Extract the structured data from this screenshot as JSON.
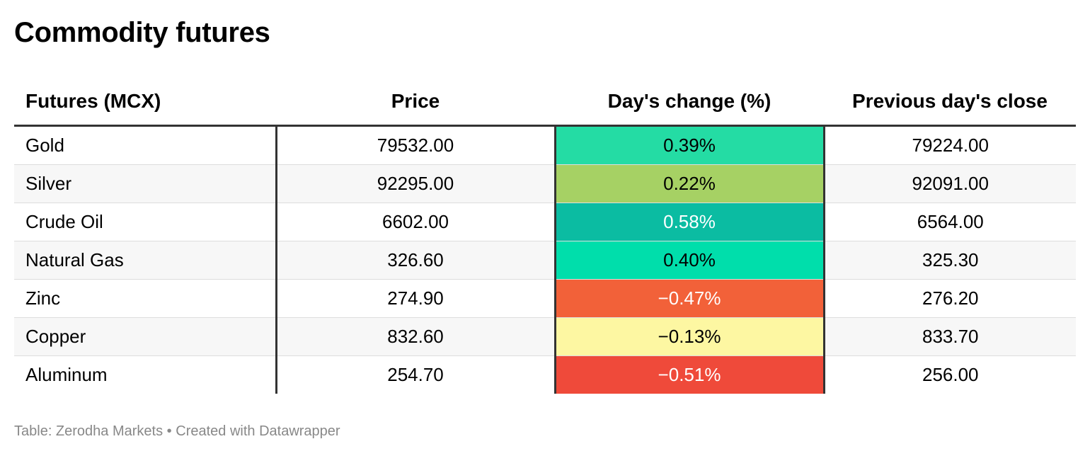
{
  "title": "Commodity futures",
  "footer": {
    "source": "Table: Zerodha Markets",
    "separator": "•",
    "credit": "Created with Datawrapper"
  },
  "chart_data": {
    "type": "table",
    "title": "Commodity futures",
    "columns": [
      "Futures (MCX)",
      "Price",
      "Day's change (%)",
      "Previous day's close"
    ],
    "rows": [
      {
        "name": "Gold",
        "price": "79532.00",
        "change": "0.39%",
        "change_value": 0.39,
        "prev_close": "79224.00",
        "color": "#24dca4",
        "text_color": "#000000"
      },
      {
        "name": "Silver",
        "price": "92295.00",
        "change": "0.22%",
        "change_value": 0.22,
        "prev_close": "92091.00",
        "color": "#a6d164",
        "text_color": "#000000"
      },
      {
        "name": "Crude Oil",
        "price": "6602.00",
        "change": "0.58%",
        "change_value": 0.58,
        "prev_close": "6564.00",
        "color": "#0bbca2",
        "text_color": "#ffffff"
      },
      {
        "name": "Natural Gas",
        "price": "326.60",
        "change": "0.40%",
        "change_value": 0.4,
        "prev_close": "325.30",
        "color": "#00deab",
        "text_color": "#000000"
      },
      {
        "name": "Zinc",
        "price": "274.90",
        "change": "−0.47%",
        "change_value": -0.47,
        "prev_close": "276.20",
        "color": "#f26139",
        "text_color": "#ffffff"
      },
      {
        "name": "Copper",
        "price": "832.60",
        "change": "−0.13%",
        "change_value": -0.13,
        "prev_close": "833.70",
        "color": "#fdf7a2",
        "text_color": "#000000"
      },
      {
        "name": "Aluminum",
        "price": "254.70",
        "change": "−0.51%",
        "change_value": -0.51,
        "prev_close": "256.00",
        "color": "#ef4a3a",
        "text_color": "#ffffff"
      }
    ]
  }
}
